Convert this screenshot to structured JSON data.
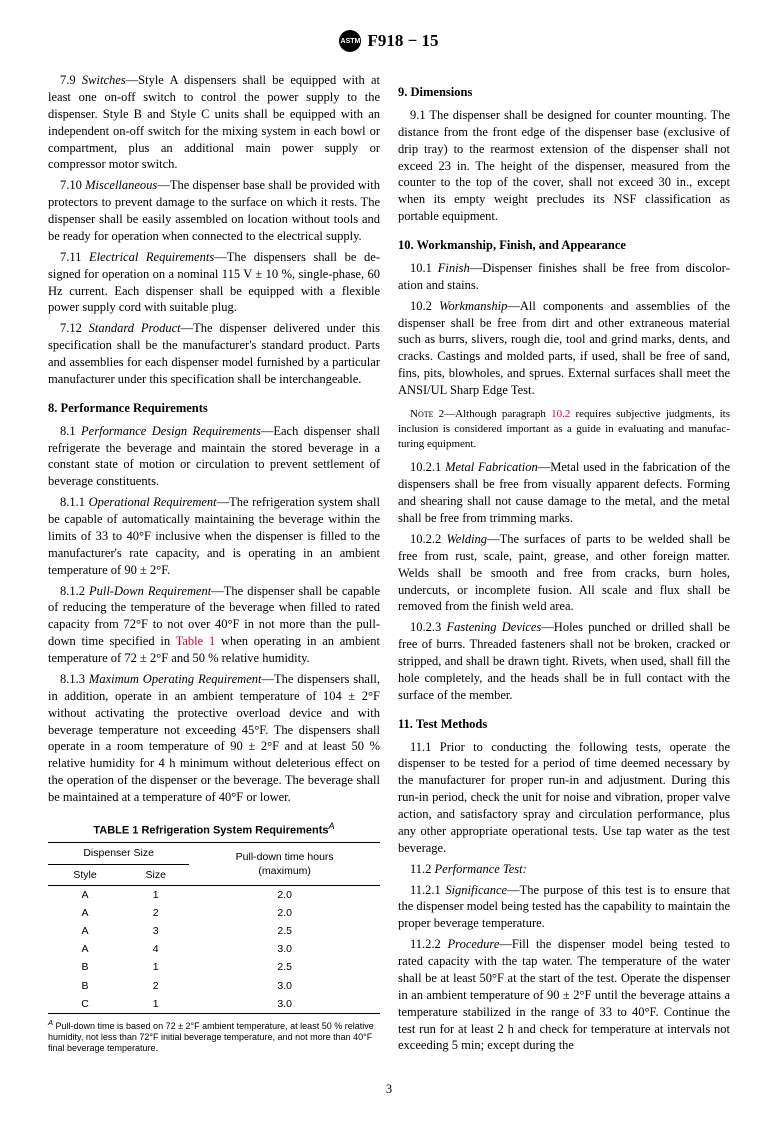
{
  "doc_header": "F918 − 15",
  "page_number": "3",
  "left": {
    "p79": {
      "num": "7.9",
      "title": "Switches",
      "text": "—Style A dispensers shall be equipped with at least one on-off switch to control the power supply to the dispenser. Style B and Style C units shall be equipped with an independent on-off switch for the mixing system in each bowl or compartment, plus an additional main power supply or compressor motor switch."
    },
    "p710": {
      "num": "7.10",
      "title": "Miscellaneous",
      "text": "—The dispenser base shall be provided with protectors to prevent damage to the surface on which it rests. The dispenser shall be easily assembled on location without tools and be ready for operation when connected to the electrical supply."
    },
    "p711": {
      "num": "7.11",
      "title": "Electrical Requirements",
      "text": "—The dispensers shall be de­signed for operation on a nominal 115 V ± 10 %, single-phase, 60 Hz current. Each dispenser shall be equipped with a flexible power supply cord with suitable plug."
    },
    "p712": {
      "num": "7.12",
      "title": "Standard Product",
      "text": "—The dispenser delivered under this specification shall be the manufacturer's standard product. Parts and assemblies for each dispenser model furnished by a particular manufacturer under this specification shall be inter­changeable."
    },
    "s8": "8.  Performance Requirements",
    "p81": {
      "num": "8.1",
      "title": "Performance Design Requirements",
      "text": "—Each dispenser shall refrigerate the beverage and maintain the stored beverage in a constant state of motion or circulation to prevent settle­ment of beverage constituents."
    },
    "p811": {
      "num": "8.1.1",
      "title": "Operational Requirement",
      "text": "—The refrigeration system shall be capable of automatically maintaining the beverage within the limits of 33 to 40°F inclusive when the dispenser is filled to the manufacturer's rate capacity, and is operating in an ambient temperature of 90 ± 2°F."
    },
    "p812": {
      "num": "8.1.2",
      "title": "Pull-Down Requirement",
      "text_a": "—The dispenser shall be ca­pable of reducing the temperature of the beverage when filled to rated capacity from 72°F to not over 40°F in not more than the pull-down time specified in ",
      "link": "Table 1",
      "text_b": " when operating in an ambient temperature of 72 ± 2°F and 50 % relative humidity."
    },
    "p813": {
      "num": "8.1.3",
      "title": "Maximum Operating Requirement",
      "text": "—The dispensers shall, in addition, operate in an ambient temperature of 104 ± 2°F without activating the protective overload device and with beverage temperature not exceeding 45°F. The dispensers shall operate in a room temperature of 90 ± 2°F and at least 50 % relative humidity for 4 h minimum without deleterious effect on the operation of the dispenser or the beverage. The beverage shall be maintained at a temperature of 40°F or lower."
    },
    "table": {
      "title": "TABLE 1 Refrigeration System Requirements",
      "super": "A",
      "col_group": "Dispenser Size",
      "col1": "Style",
      "col2": "Size",
      "col3_a": "Pull-down time hours",
      "col3_b": "(maximum)",
      "rows": [
        {
          "style": "A",
          "size": "1",
          "time": "2.0"
        },
        {
          "style": "A",
          "size": "2",
          "time": "2.0"
        },
        {
          "style": "A",
          "size": "3",
          "time": "2.5"
        },
        {
          "style": "A",
          "size": "4",
          "time": "3.0"
        },
        {
          "style": "B",
          "size": "1",
          "time": "2.5"
        },
        {
          "style": "B",
          "size": "2",
          "time": "3.0"
        },
        {
          "style": "C",
          "size": "1",
          "time": "3.0"
        }
      ],
      "footnote_sup": "A",
      "footnote": " Pull-down time is based on 72 ± 2°F ambient temperature, at least 50 % relative humidity, not less than 72°F initial beverage temperature, and not more than 40°F final beverage temperature."
    }
  },
  "right": {
    "s9": "9.  Dimensions",
    "p91": {
      "num": "9.1",
      "text": " The dispenser shall be designed for counter mounting. The distance from the front edge of the dispenser base (exclusive of drip tray) to the rearmost extension of the dispenser shall not exceed 23 in. The height of the dispenser, measured from the counter to the top of the cover, shall not exceed 30 in., except when its empty weight precludes its NSF classification as portable equipment."
    },
    "s10": "10.  Workmanship, Finish, and Appearance",
    "p101": {
      "num": "10.1",
      "title": "Finish",
      "text": "—Dispenser finishes shall be free from discolor­ation and stains."
    },
    "p102": {
      "num": "10.2",
      "title": "Workmanship",
      "text": "—All components and assemblies of the dispenser shall be free from dirt and other extraneous material such as burrs, slivers, rough die, tool and grind marks, dents, and cracks. Castings and molded parts, if used, shall be free of sand, fins, pits, blowholes, and sprues. External surfaces shall meet the ANSI/UL Sharp Edge Test."
    },
    "note2": {
      "label": "Note 2",
      "text_a": "—Although paragraph ",
      "link": "10.2",
      "text_b": " requires subjective judgments, its inclusion is considered important as a guide in evaluating and manufac­turing equipment."
    },
    "p1021": {
      "num": "10.2.1",
      "title": "Metal Fabrication",
      "text": "—Metal used in the fabrication of the dispensers shall be free from visually apparent defects. Forming and shearing shall not cause damage to the metal, and the metal shall be free from trimming marks."
    },
    "p1022": {
      "num": "10.2.2",
      "title": "Welding",
      "text": "—The surfaces of parts to be welded shall be free from rust, scale, paint, grease, and other foreign matter. Welds shall be smooth and free from cracks, burn holes, undercuts, or incomplete fusion. All scale and flux shall be removed from the finish weld area."
    },
    "p1023": {
      "num": "10.2.3",
      "title": "Fastening Devices",
      "text": "—Holes punched or drilled shall be free of burrs. Threaded fasteners shall not be broken, cracked or stripped, and shall be drawn tight. Rivets, when used, shall fill the hole completely, and the heads shall be in full contact with the surface of the member."
    },
    "s11": "11.  Test Methods",
    "p111": {
      "num": "11.1",
      "text": " Prior to conducting the following tests, operate the dispenser to be tested for a period of time deemed necessary by the manufacturer for proper run-in and adjustment. During this run-in period, check the unit for noise and vibration, proper valve action, and satisfactory spray and circulation performance, plus any other appropriate operational tests. Use tap water as the test beverage."
    },
    "p112": {
      "num": "11.2",
      "title": "Performance Test:"
    },
    "p1121": {
      "num": "11.2.1",
      "title": "Significance",
      "text": "—The purpose of this test is to ensure that the dispenser model being tested has the capability to maintain the proper beverage temperature."
    },
    "p1122": {
      "num": "11.2.2",
      "title": "Procedure",
      "text": "—Fill the dispenser model being tested to rated capacity with the tap water. The temperature of the water shall be at least 50°F at the start of the test. Operate the dispenser in an ambient temperature of 90 ± 2°F until the beverage attains a temperature stabilized in the range of 33 to 40°F. Continue the test run for at least 2 h and check for temperature at intervals not exceeding 5 min; except during the"
    }
  }
}
